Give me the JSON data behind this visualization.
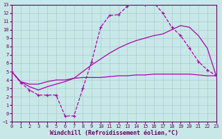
{
  "xlabel": "Windchill (Refroidissement éolien,°C)",
  "bg_color": "#c8e8e8",
  "line_color": "#aa00aa",
  "grid_color": "#a8cccc",
  "xlim": [
    0,
    23
  ],
  "ylim": [
    -1,
    13
  ],
  "xticks": [
    0,
    1,
    2,
    3,
    4,
    5,
    6,
    7,
    8,
    9,
    10,
    11,
    12,
    13,
    14,
    15,
    16,
    17,
    18,
    19,
    20,
    21,
    22,
    23
  ],
  "yticks": [
    -1,
    0,
    1,
    2,
    3,
    4,
    5,
    6,
    7,
    8,
    9,
    10,
    11,
    12,
    13
  ],
  "curve_dash_x": [
    0,
    1,
    2,
    3,
    4,
    5,
    6,
    7,
    8,
    9,
    10,
    11,
    12,
    13,
    14,
    15,
    16,
    17,
    18,
    19,
    20,
    21,
    22,
    23
  ],
  "curve_dash_y": [
    5.0,
    3.7,
    2.8,
    2.2,
    2.2,
    2.2,
    -0.3,
    -0.3,
    3.0,
    6.2,
    10.3,
    11.7,
    11.8,
    12.8,
    13.2,
    13.0,
    13.2,
    12.0,
    10.3,
    9.3,
    7.8,
    6.2,
    5.2,
    4.5
  ],
  "curve_upper_x": [
    0,
    1,
    2,
    3,
    4,
    5,
    6,
    7,
    8,
    9,
    10,
    11,
    12,
    13,
    14,
    15,
    16,
    17,
    18,
    19,
    20,
    21,
    22,
    23
  ],
  "curve_upper_y": [
    5.0,
    3.8,
    3.2,
    2.8,
    3.2,
    3.5,
    3.8,
    4.2,
    5.0,
    5.8,
    6.5,
    7.2,
    7.8,
    8.3,
    8.7,
    9.0,
    9.3,
    9.5,
    10.0,
    10.5,
    10.3,
    9.3,
    7.8,
    4.5
  ],
  "curve_lower_x": [
    0,
    1,
    2,
    3,
    4,
    5,
    6,
    7,
    8,
    9,
    10,
    11,
    12,
    13,
    14,
    15,
    16,
    17,
    18,
    19,
    20,
    21,
    22,
    23
  ],
  "curve_lower_y": [
    5.0,
    3.8,
    3.5,
    3.5,
    3.8,
    4.0,
    4.0,
    4.2,
    4.3,
    4.3,
    4.3,
    4.4,
    4.5,
    4.5,
    4.6,
    4.6,
    4.7,
    4.7,
    4.7,
    4.7,
    4.7,
    4.6,
    4.5,
    4.5
  ],
  "tick_fontsize": 5,
  "label_fontsize": 6
}
